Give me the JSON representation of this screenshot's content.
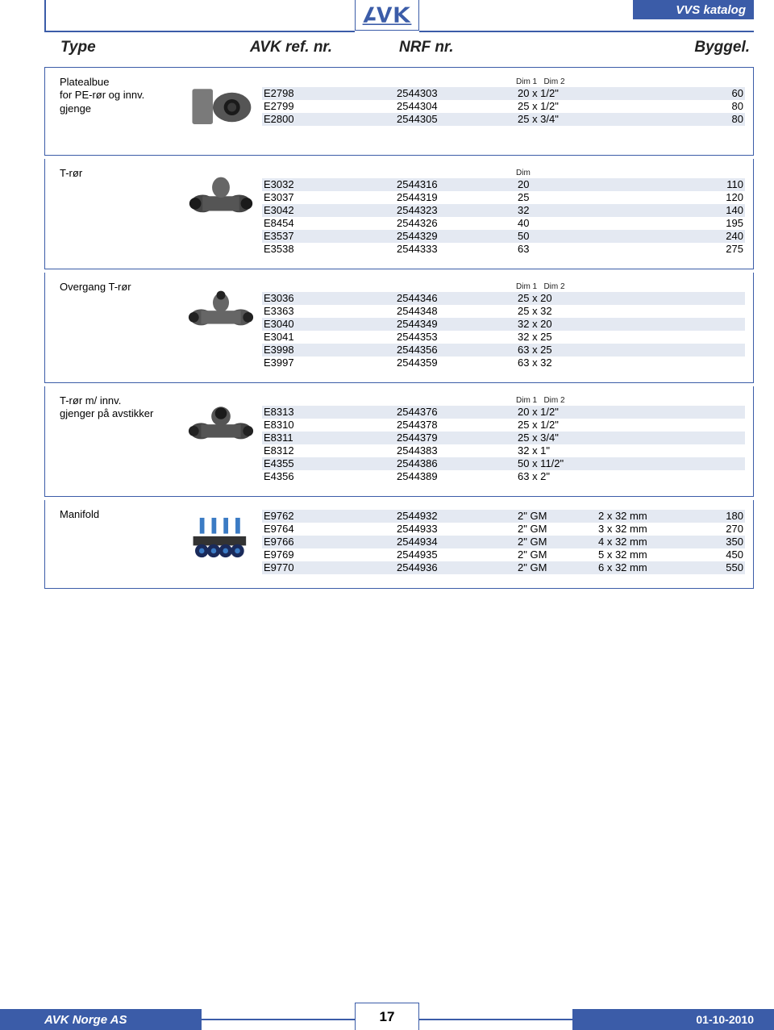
{
  "header": {
    "vvs": "VVS katalog",
    "type": "Type",
    "ref": "AVK ref. nr.",
    "nrf": "NRF nr.",
    "bygg": "Byggel."
  },
  "footer": {
    "left": "AVK Norge AS",
    "page": "17",
    "date": "01-10-2010"
  },
  "colors": {
    "brand": "#3b5ca8",
    "shade": "#e4e9f2"
  },
  "sections": [
    {
      "type_label": "Platealbue\nfor PE-rør og innv.\ngjenge",
      "dim_header": "Dim 1   Dim 2",
      "cols": [
        "ref",
        "nrf",
        "dim",
        "bygg"
      ],
      "rows": [
        [
          "E2798",
          "2544303",
          "20  x 1/2\"",
          "60"
        ],
        [
          "E2799",
          "2544304",
          "25  x 1/2\"",
          "80"
        ],
        [
          "E2800",
          "2544305",
          "25  x 3/4\"",
          "80"
        ]
      ]
    },
    {
      "type_label": "T-rør",
      "dim_header": "Dim",
      "cols": [
        "ref",
        "nrf",
        "dim",
        "bygg"
      ],
      "rows": [
        [
          "E3032",
          "2544316",
          "20",
          "110"
        ],
        [
          "E3037",
          "2544319",
          "25",
          "120"
        ],
        [
          "E3042",
          "2544323",
          "32",
          "140"
        ],
        [
          "E8454",
          "2544326",
          "40",
          "195"
        ],
        [
          "E3537",
          "2544329",
          "50",
          "240"
        ],
        [
          "E3538",
          "2544333",
          "63",
          "275"
        ]
      ]
    },
    {
      "type_label": "Overgang T-rør",
      "dim_header": "Dim 1   Dim 2",
      "cols": [
        "ref",
        "nrf",
        "dim"
      ],
      "rows": [
        [
          "E3036",
          "2544346",
          "25  x 20"
        ],
        [
          "E3363",
          "2544348",
          "25  x 32"
        ],
        [
          "E3040",
          "2544349",
          "32  x 20"
        ],
        [
          "E3041",
          "2544353",
          "32  x 25"
        ],
        [
          "E3998",
          "2544356",
          "63  x 25"
        ],
        [
          "E3997",
          "2544359",
          "63  x 32"
        ]
      ]
    },
    {
      "type_label": "T-rør m/ innv.\ngjenger på avstikker",
      "dim_header": "Dim 1   Dim 2",
      "cols": [
        "ref",
        "nrf",
        "dim"
      ],
      "rows": [
        [
          "E8313",
          "2544376",
          "20  x 1/2\""
        ],
        [
          "E8310",
          "2544378",
          "25  x 1/2\""
        ],
        [
          "E8311",
          "2544379",
          "25  x 3/4\""
        ],
        [
          "E8312",
          "2544383",
          "32  x 1\""
        ],
        [
          "E4355",
          "2544386",
          "50  x 11/2\""
        ],
        [
          "E4356",
          "2544389",
          "63  x 2\""
        ]
      ]
    },
    {
      "type_label": "Manifold",
      "dim_header": "",
      "cols": [
        "ref",
        "nrf",
        "dim",
        "sz",
        "bygg"
      ],
      "rows": [
        [
          "E9762",
          "2544932",
          "2\" GM",
          "2 x 32 mm",
          "180"
        ],
        [
          "E9764",
          "2544933",
          "2\" GM",
          "3 x 32 mm",
          "270"
        ],
        [
          "E9766",
          "2544934",
          "2\" GM",
          "4 x 32 mm",
          "350"
        ],
        [
          "E9769",
          "2544935",
          "2\" GM",
          "5 x 32 mm",
          "450"
        ],
        [
          "E9770",
          "2544936",
          "2\" GM",
          "6 x 32 mm",
          "550"
        ]
      ]
    }
  ]
}
